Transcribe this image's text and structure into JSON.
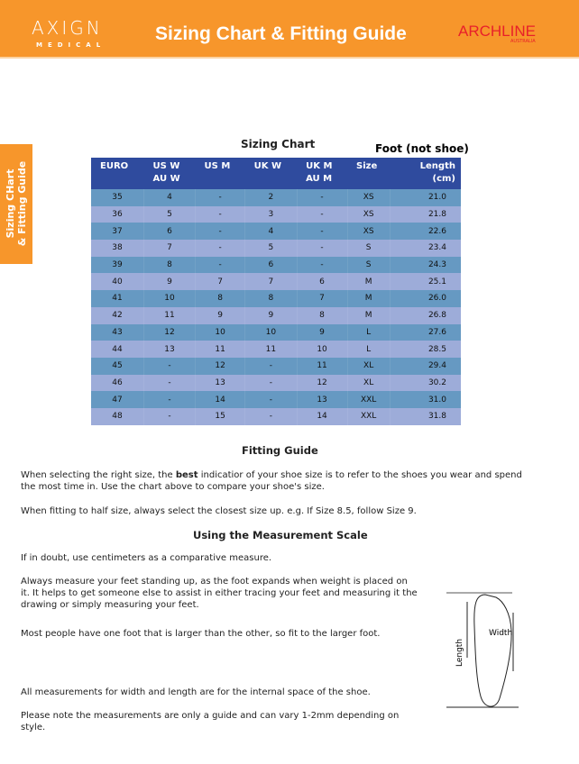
{
  "header": {
    "brand": "AXIGN",
    "brand_sub": "MEDICAL",
    "title": "Sizing Chart & Fitting Guide",
    "partner": "ARCHLINE",
    "partner_sub": "AUSTRALIA",
    "color": "#F7962B"
  },
  "side_tab": {
    "line1": "Sizing CHart",
    "line2": "& Fitting Guide"
  },
  "chart": {
    "title": "Sizing Chart",
    "note": "Foot (not shoe)",
    "columns": [
      [
        "EURO",
        ""
      ],
      [
        "US W",
        "AU W"
      ],
      [
        "US M",
        ""
      ],
      [
        "UK W",
        ""
      ],
      [
        "UK M",
        "AU M"
      ],
      [
        "Size",
        ""
      ],
      [
        "Length",
        "(cm)"
      ]
    ],
    "rows": [
      [
        "35",
        "4",
        "-",
        "2",
        "-",
        "XS",
        "21.0"
      ],
      [
        "36",
        "5",
        "-",
        "3",
        "-",
        "XS",
        "21.8"
      ],
      [
        "37",
        "6",
        "-",
        "4",
        "-",
        "XS",
        "22.6"
      ],
      [
        "38",
        "7",
        "-",
        "5",
        "-",
        "S",
        "23.4"
      ],
      [
        "39",
        "8",
        "-",
        "6",
        "-",
        "S",
        "24.3"
      ],
      [
        "40",
        "9",
        "7",
        "7",
        "6",
        "M",
        "25.1"
      ],
      [
        "41",
        "10",
        "8",
        "8",
        "7",
        "M",
        "26.0"
      ],
      [
        "42",
        "11",
        "9",
        "9",
        "8",
        "M",
        "26.8"
      ],
      [
        "43",
        "12",
        "10",
        "10",
        "9",
        "L",
        "27.6"
      ],
      [
        "44",
        "13",
        "11",
        "11",
        "10",
        "L",
        "28.5"
      ],
      [
        "45",
        "-",
        "12",
        "-",
        "11",
        "XL",
        "29.4"
      ],
      [
        "46",
        "-",
        "13",
        "-",
        "12",
        "XL",
        "30.2"
      ],
      [
        "47",
        "-",
        "14",
        "-",
        "13",
        "XXL",
        "31.0"
      ],
      [
        "48",
        "-",
        "15",
        "-",
        "14",
        "XXL",
        "31.8"
      ]
    ]
  },
  "fitting": {
    "title": "Fitting Guide",
    "p1_a": "When selecting the right size, the ",
    "p1_b": "best",
    "p1_c": " indicatior of your shoe size is to refer to the shoes you wear and spend the most time in. Use the chart above to compare your shoe's size.",
    "p2": "When fitting to half size, always select the closest size up. e.g. If Size 8.5, follow Size 9."
  },
  "measure": {
    "title": "Using the Measurement Scale",
    "p1": "If in doubt, use centimeters as a comparative measure.",
    "p2": "Always measure your feet standing up, as the foot expands when weight is placed on it. It helps to get someone else to assist in either tracing your feet and measuring it the drawing or simply measuring your feet.",
    "p3": "Most people have one foot that is larger than the other, so fit to the larger foot.",
    "p4": "All measurements for width and length are for the internal space of the shoe.",
    "p5": "Please note the measurements are only a guide and can vary 1-2mm depending on style.",
    "fig_length": "Length",
    "fig_width": "Width"
  }
}
